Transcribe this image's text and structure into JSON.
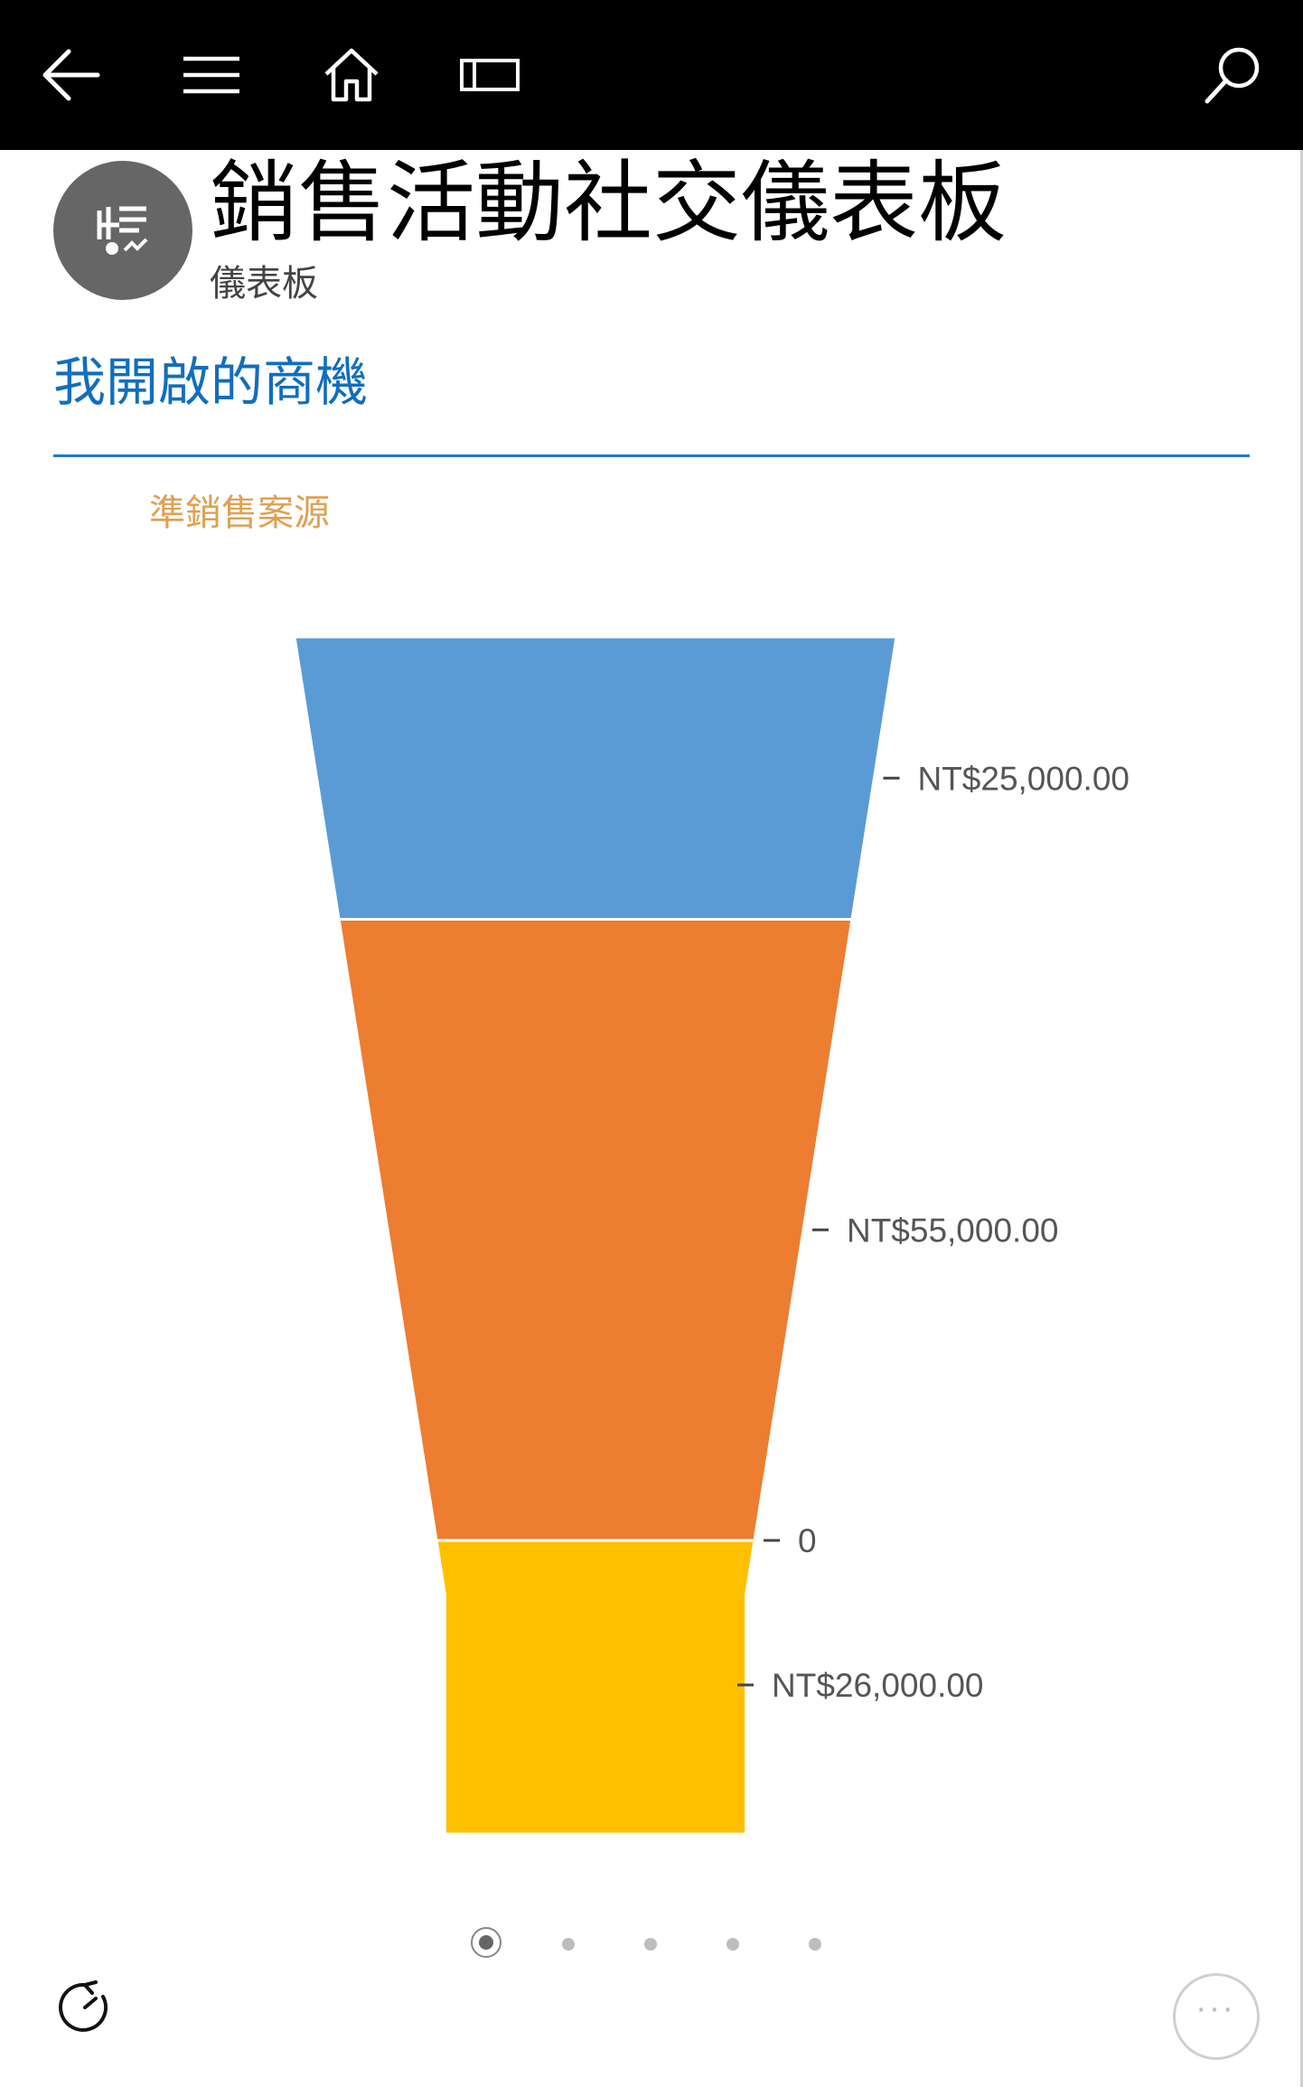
{
  "topbar": {
    "back_icon": "arrow-left-icon",
    "menu_icon": "hamburger-icon",
    "home_icon": "home-icon",
    "panel_icon": "panel-icon",
    "search_icon": "search-icon",
    "color": "#000000"
  },
  "header": {
    "title": "銷售活動社交儀表板",
    "subtitle": "儀表板",
    "avatar_icon": "dashboard-icon"
  },
  "section": {
    "title": "我開啟的商機",
    "accent": "#106ebe"
  },
  "chart_data": {
    "type": "funnel",
    "legend": [
      {
        "name": "準銷售案源",
        "color": "#e0a050"
      }
    ],
    "stages": [
      {
        "label": "NT$25,000.00",
        "value": 25000,
        "color": "#5b9bd5"
      },
      {
        "label": "NT$55,000.00",
        "value": 55000,
        "color": "#ed7d31"
      },
      {
        "label": "0",
        "value": 0,
        "color": "#ed7d31"
      },
      {
        "label": "NT$26,000.00",
        "value": 26000,
        "color": "#ffc000"
      }
    ]
  },
  "pager": {
    "pages": 5,
    "active": 1
  },
  "footer": {
    "refresh_icon": "refresh-icon",
    "more_icon": "more-icon",
    "more_label": "···"
  }
}
